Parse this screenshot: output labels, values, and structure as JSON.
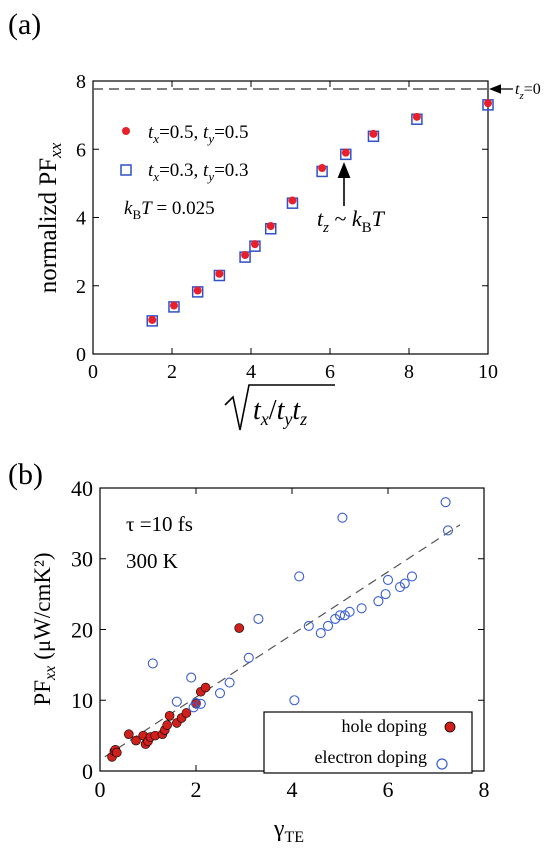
{
  "panel_labels": [
    "(a)",
    "(b)"
  ],
  "chart_data": [
    {
      "type": "scatter",
      "panel_label": "(a)",
      "ylabel": "normalizd PF",
      "ylabel_sub": "xx",
      "xlabel": "√(t_x / t_y t_z)",
      "xlim": [
        0,
        10
      ],
      "ylim": [
        0,
        8
      ],
      "xticks": [
        "0",
        "2",
        "4",
        "6",
        "8",
        "10"
      ],
      "yticks": [
        "0",
        "2",
        "4",
        "6",
        "8"
      ],
      "grid": false,
      "reference_line": {
        "y": 7.8,
        "style": "dashed",
        "label": "t_z=0"
      },
      "annotation": {
        "text": "t_z ~ k_B T",
        "points_to": [
          6.4,
          5.95
        ],
        "text_at": [
          6.4,
          4.8
        ]
      },
      "param_text": "k_B T = 0.025",
      "legend_position": "left",
      "series": [
        {
          "name": "t_x=0.5, t_y=0.5",
          "marker": "filled-circle",
          "color": "#e8202a",
          "x": [
            1.5,
            2.05,
            2.65,
            3.2,
            3.85,
            4.1,
            4.5,
            5.05,
            5.8,
            6.4,
            7.1,
            8.2,
            10.0
          ],
          "y": [
            1.0,
            1.42,
            1.86,
            2.35,
            2.9,
            3.22,
            3.75,
            4.5,
            5.45,
            5.9,
            6.45,
            6.95,
            7.35
          ]
        },
        {
          "name": "t_x=0.3, t_y=0.3",
          "marker": "open-square",
          "color": "#2f50c8",
          "x": [
            1.5,
            2.05,
            2.65,
            3.2,
            3.85,
            4.1,
            4.5,
            5.05,
            5.8,
            6.4,
            7.1,
            8.2,
            10.0
          ],
          "y": [
            0.97,
            1.38,
            1.82,
            2.3,
            2.84,
            3.16,
            3.67,
            4.42,
            5.35,
            5.85,
            6.38,
            6.88,
            7.3
          ]
        }
      ]
    },
    {
      "type": "scatter",
      "panel_label": "(b)",
      "ylabel": "PF",
      "ylabel_sub": "xx",
      "ylabel_unit": "(μW/cmK²)",
      "xlabel": "γ",
      "xlabel_sub": "TE",
      "xlim": [
        0,
        8
      ],
      "ylim": [
        0,
        40
      ],
      "xticks": [
        "0",
        "2",
        "4",
        "6",
        "8"
      ],
      "yticks": [
        "0",
        "10",
        "20",
        "30",
        "40"
      ],
      "grid": false,
      "text_lines": [
        "τ =10 fs",
        "300 K"
      ],
      "fit_line": {
        "from": [
          0.1,
          2.0
        ],
        "to": [
          7.5,
          34.8
        ],
        "style": "dashed"
      },
      "legend_position": "bottom-right",
      "series": [
        {
          "name": "hole doping",
          "marker": "filled-circle",
          "color": "#d0201c",
          "x": [
            0.25,
            0.3,
            0.32,
            0.35,
            0.6,
            0.75,
            0.9,
            0.95,
            1.0,
            1.05,
            1.15,
            1.3,
            1.35,
            1.4,
            1.45,
            1.6,
            1.7,
            1.8,
            2.0,
            2.1,
            2.2,
            2.9
          ],
          "y": [
            2.0,
            2.8,
            3.0,
            2.6,
            5.2,
            4.3,
            5.0,
            3.8,
            4.2,
            4.8,
            5.0,
            5.2,
            5.8,
            6.5,
            7.8,
            6.8,
            7.5,
            8.2,
            9.5,
            11.2,
            11.8,
            20.2
          ]
        },
        {
          "name": "electron doping",
          "marker": "open-circle",
          "color": "#3a5fd0",
          "x": [
            1.1,
            1.6,
            1.9,
            1.95,
            2.0,
            2.1,
            2.5,
            2.7,
            3.1,
            3.3,
            4.05,
            4.15,
            4.35,
            4.6,
            4.75,
            4.9,
            5.0,
            5.05,
            5.1,
            5.2,
            5.45,
            5.8,
            5.95,
            6.0,
            6.25,
            6.35,
            6.5,
            7.2,
            7.25
          ],
          "y": [
            15.2,
            9.8,
            13.2,
            9.0,
            9.6,
            9.5,
            11.0,
            12.5,
            16.0,
            21.5,
            10.0,
            27.5,
            20.5,
            19.5,
            20.5,
            21.5,
            22.0,
            35.8,
            22.0,
            22.5,
            23.0,
            24.0,
            25.0,
            27.0,
            26.0,
            26.5,
            27.5,
            38.0,
            34.0
          ]
        }
      ]
    }
  ]
}
